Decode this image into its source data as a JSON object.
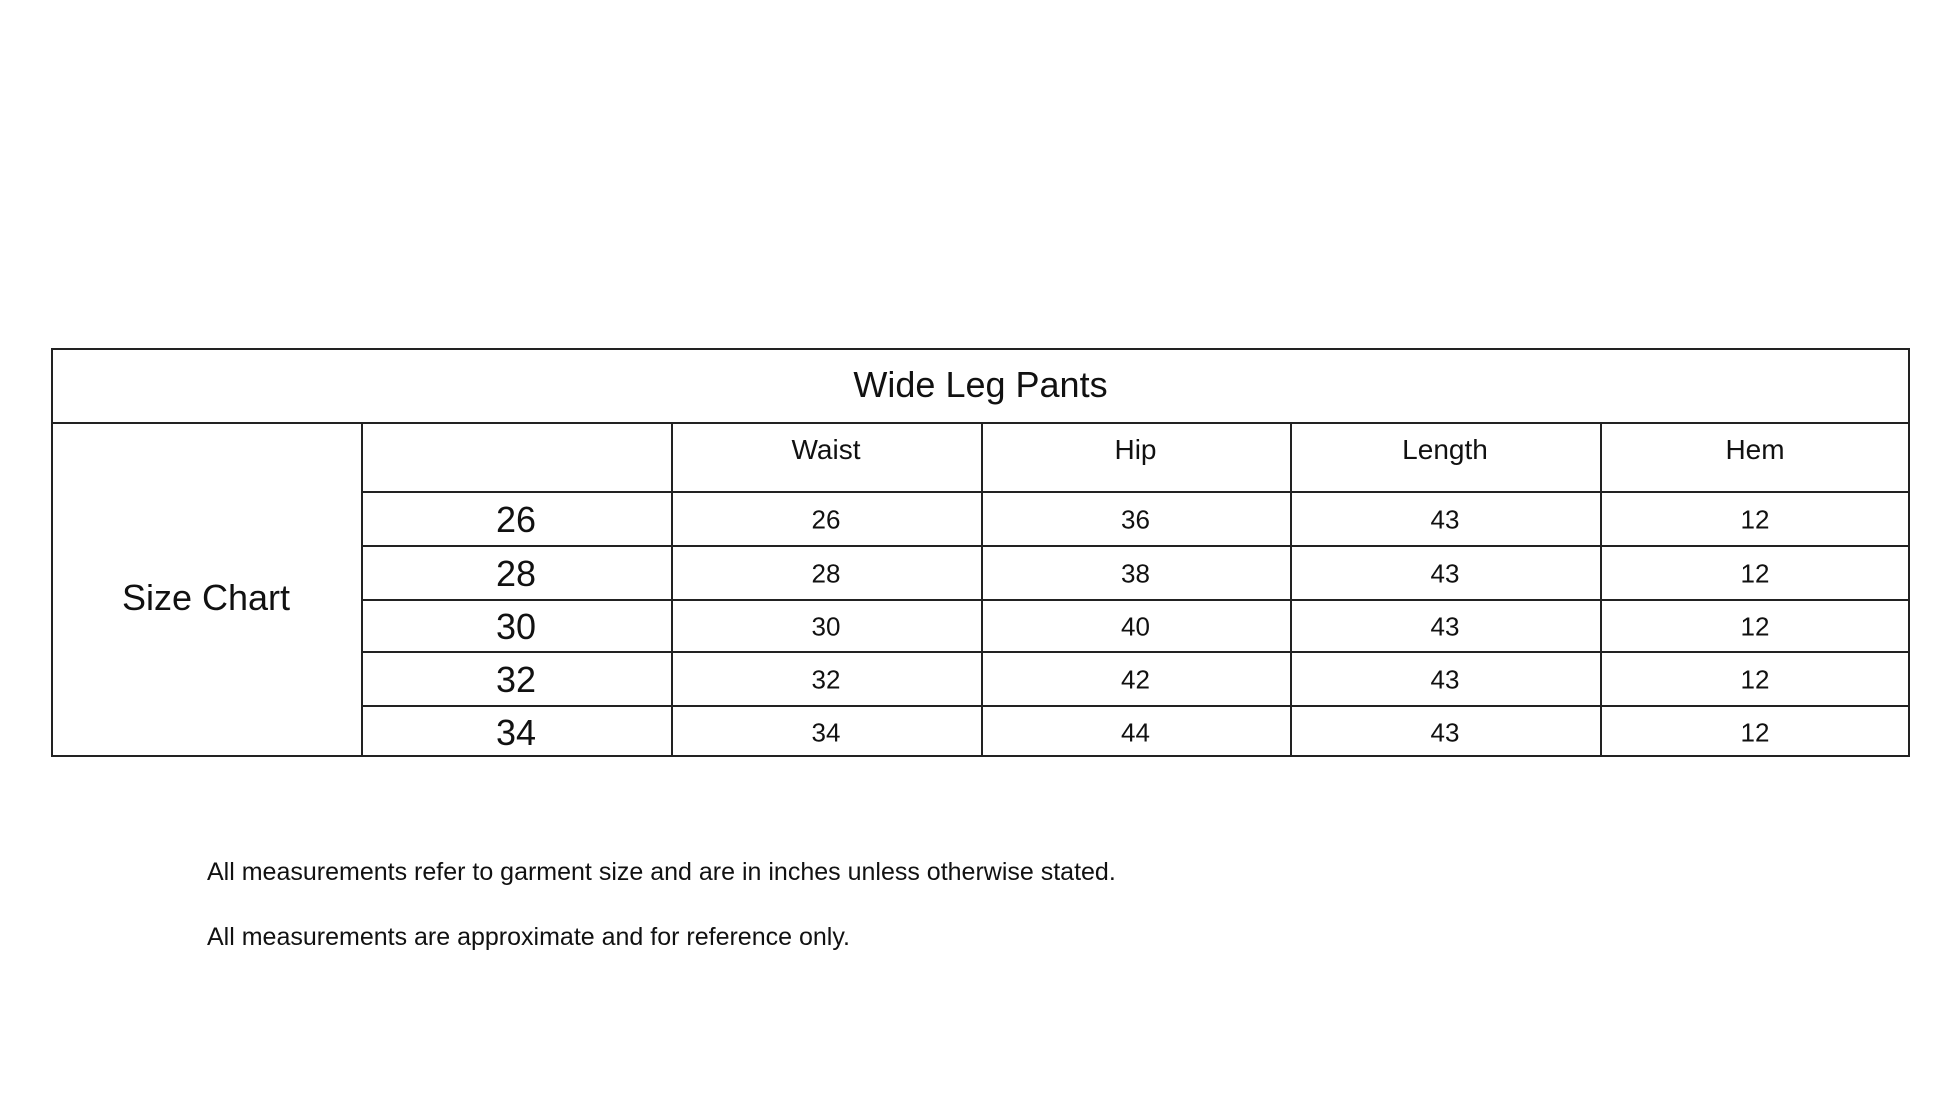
{
  "table": {
    "title": "Wide Leg Pants",
    "side_label": "Size Chart",
    "columns": [
      "Waist",
      "Hip",
      "Length",
      "Hem"
    ],
    "rows": [
      {
        "size": "26",
        "values": [
          "26",
          "36",
          "43",
          "12"
        ]
      },
      {
        "size": "28",
        "values": [
          "28",
          "38",
          "43",
          "12"
        ]
      },
      {
        "size": "30",
        "values": [
          "30",
          "40",
          "43",
          "12"
        ]
      },
      {
        "size": "32",
        "values": [
          "32",
          "42",
          "43",
          "12"
        ]
      },
      {
        "size": "34",
        "values": [
          "34",
          "44",
          "43",
          "12"
        ]
      }
    ]
  },
  "notes": [
    "All measurements refer to garment size and are in inches unless otherwise stated.",
    "All measurements are approximate and for reference only."
  ]
}
